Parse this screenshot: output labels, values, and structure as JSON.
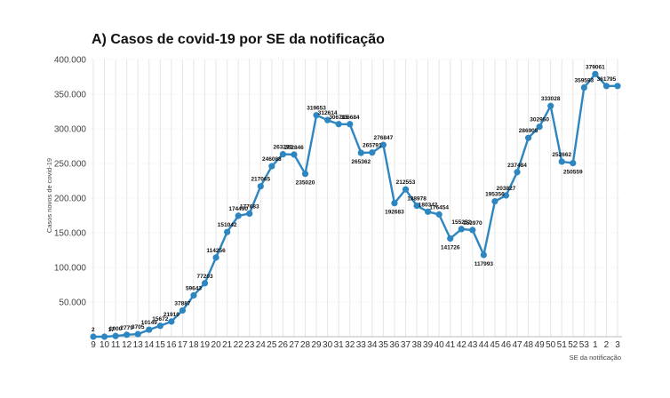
{
  "chart_data": {
    "type": "line",
    "title": "A) Casos de covid-19 por SE da notificação",
    "xlabel": "SE da notificação",
    "ylabel": "Casos novos de covid-19",
    "ylim": [
      0,
      400000
    ],
    "yticks": [
      0,
      50000,
      100000,
      150000,
      200000,
      250000,
      300000,
      350000,
      400000
    ],
    "ytick_labels": [
      "",
      "50.000",
      "100.000",
      "150.000",
      "200.000",
      "250.000",
      "300.000",
      "350.000",
      "400.000"
    ],
    "categories": [
      "9",
      "10",
      "11",
      "12",
      "13",
      "14",
      "15",
      "16",
      "17",
      "18",
      "19",
      "20",
      "21",
      "22",
      "23",
      "24",
      "25",
      "26",
      "27",
      "28",
      "29",
      "30",
      "31",
      "32",
      "33",
      "34",
      "35",
      "36",
      "37",
      "38",
      "39",
      "40",
      "41",
      "42",
      "43",
      "44",
      "45",
      "46",
      "47",
      "48",
      "49",
      "50",
      "51",
      "52",
      "53",
      "1",
      "2",
      "3"
    ],
    "values": [
      2,
      17,
      1000,
      2779,
      3705,
      10149,
      15672,
      21910,
      37887,
      59643,
      77203,
      114256,
      151042,
      174490,
      177683,
      217065,
      246088,
      263270,
      262846,
      235020,
      319653,
      312614,
      306715,
      306684,
      265362,
      265791,
      276847,
      192683,
      212553,
      188978,
      180342,
      176454,
      141726,
      155252,
      153970,
      117993,
      195356,
      203827,
      237484,
      286905,
      302950,
      333028,
      252662,
      250559,
      359593,
      379061,
      361795,
      361795
    ],
    "data_labels": [
      "2",
      "17",
      "1000",
      "2779",
      "3705",
      "10149",
      "15672",
      "21910",
      "37887",
      "59643",
      "77203",
      "114256",
      "151042",
      "174490",
      "177683",
      "217065",
      "246088",
      "263270",
      "262846",
      "235020",
      "319653",
      "312614",
      "306715",
      "306684",
      "265362",
      "265791",
      "276847",
      "192683",
      "212553",
      "188978",
      "180342",
      "176454",
      "141726",
      "155252",
      "153970",
      "117993",
      "195356",
      "203827",
      "237484",
      "286905",
      "302950",
      "333028",
      "252662",
      "250559",
      "359593",
      "379061",
      "361795",
      ""
    ],
    "colors": {
      "line": "#2e86c1",
      "marker": "#2e86c1"
    }
  }
}
